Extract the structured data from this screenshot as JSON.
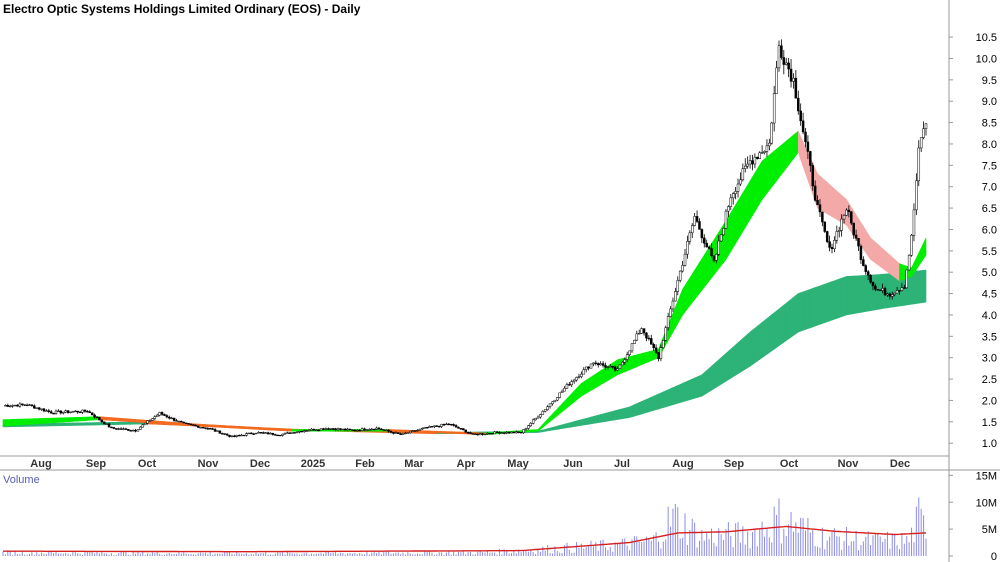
{
  "chart_data": {
    "type": "candlestick",
    "title": "Electro Optic Systems Holdings Limited Ordinary (EOS) - Daily",
    "volume_title": "Volume",
    "x_ticks": [
      "Aug",
      "Sep",
      "Oct",
      "Nov",
      "Dec",
      "2025",
      "Feb",
      "Mar",
      "Apr",
      "May",
      "Jun",
      "Jul",
      "Aug",
      "Sep",
      "Oct",
      "Nov",
      "Dec"
    ],
    "price_axis": {
      "ylim": [
        0.7,
        10.9
      ],
      "ticks": [
        "1.0",
        "1.5",
        "2.0",
        "2.5",
        "3.0",
        "3.5",
        "4.0",
        "4.5",
        "5.0",
        "5.5",
        "6.0",
        "6.5",
        "7.0",
        "7.5",
        "8.0",
        "8.5",
        "9.0",
        "9.5",
        "10.0",
        "10.5"
      ]
    },
    "volume_axis": {
      "ylim": [
        0,
        16
      ],
      "ticks": [
        {
          "value": 0,
          "label": "0"
        },
        {
          "value": 5,
          "label": "5M"
        },
        {
          "value": 10,
          "label": "10M"
        },
        {
          "value": 15,
          "label": "15M"
        }
      ]
    },
    "price_keypoints": [
      {
        "i": 0,
        "close": 1.88
      },
      {
        "i": 10,
        "close": 1.9
      },
      {
        "i": 20,
        "close": 1.72
      },
      {
        "i": 35,
        "close": 1.75
      },
      {
        "i": 45,
        "close": 1.35
      },
      {
        "i": 55,
        "close": 1.3
      },
      {
        "i": 65,
        "close": 1.7
      },
      {
        "i": 75,
        "close": 1.45
      },
      {
        "i": 85,
        "close": 1.35
      },
      {
        "i": 95,
        "close": 1.15
      },
      {
        "i": 105,
        "close": 1.25
      },
      {
        "i": 115,
        "close": 1.2
      },
      {
        "i": 125,
        "close": 1.3
      },
      {
        "i": 135,
        "close": 1.35
      },
      {
        "i": 145,
        "close": 1.3
      },
      {
        "i": 155,
        "close": 1.35
      },
      {
        "i": 165,
        "close": 1.2
      },
      {
        "i": 175,
        "close": 1.35
      },
      {
        "i": 185,
        "close": 1.45
      },
      {
        "i": 195,
        "close": 1.2
      },
      {
        "i": 205,
        "close": 1.25
      },
      {
        "i": 215,
        "close": 1.25
      },
      {
        "i": 225,
        "close": 1.8
      },
      {
        "i": 235,
        "close": 2.4
      },
      {
        "i": 245,
        "close": 2.9
      },
      {
        "i": 255,
        "close": 2.7
      },
      {
        "i": 265,
        "close": 3.7
      },
      {
        "i": 272,
        "close": 3.0
      },
      {
        "i": 280,
        "close": 4.8
      },
      {
        "i": 287,
        "close": 6.3
      },
      {
        "i": 295,
        "close": 5.2
      },
      {
        "i": 302,
        "close": 6.8
      },
      {
        "i": 310,
        "close": 7.6
      },
      {
        "i": 318,
        "close": 8.0
      },
      {
        "i": 322,
        "close": 10.3
      },
      {
        "i": 328,
        "close": 9.5
      },
      {
        "i": 333,
        "close": 8.0
      },
      {
        "i": 338,
        "close": 6.5
      },
      {
        "i": 343,
        "close": 5.5
      },
      {
        "i": 350,
        "close": 6.5
      },
      {
        "i": 357,
        "close": 5.2
      },
      {
        "i": 362,
        "close": 4.6
      },
      {
        "i": 368,
        "close": 4.5
      },
      {
        "i": 374,
        "close": 4.7
      },
      {
        "i": 377,
        "close": 5.8
      },
      {
        "i": 380,
        "close": 7.8
      },
      {
        "i": 382,
        "close": 8.4
      }
    ],
    "guppy_short": [
      {
        "i": 0,
        "lo": 1.4,
        "hi": 1.55
      },
      {
        "i": 40,
        "lo": 1.55,
        "hi": 1.62
      },
      {
        "i": 80,
        "lo": 1.4,
        "hi": 1.45
      },
      {
        "i": 120,
        "lo": 1.28,
        "hi": 1.32
      },
      {
        "i": 160,
        "lo": 1.28,
        "hi": 1.32
      },
      {
        "i": 200,
        "lo": 1.2,
        "hi": 1.24
      },
      {
        "i": 222,
        "lo": 1.28,
        "hi": 1.32
      },
      {
        "i": 240,
        "lo": 2.1,
        "hi": 2.4
      },
      {
        "i": 255,
        "lo": 2.6,
        "hi": 2.95
      },
      {
        "i": 272,
        "lo": 3.0,
        "hi": 3.2
      },
      {
        "i": 282,
        "lo": 4.0,
        "hi": 4.6
      },
      {
        "i": 300,
        "lo": 5.3,
        "hi": 6.2
      },
      {
        "i": 315,
        "lo": 6.7,
        "hi": 7.6
      },
      {
        "i": 330,
        "lo": 7.8,
        "hi": 8.3
      },
      {
        "i": 338,
        "lo": 6.5,
        "hi": 7.3
      },
      {
        "i": 350,
        "lo": 6.1,
        "hi": 6.7
      },
      {
        "i": 360,
        "lo": 5.3,
        "hi": 5.8
      },
      {
        "i": 372,
        "lo": 4.8,
        "hi": 5.2
      },
      {
        "i": 377,
        "lo": 4.9,
        "hi": 5.1
      },
      {
        "i": 383,
        "lo": 5.4,
        "hi": 5.8
      }
    ],
    "guppy_long": [
      {
        "i": 0,
        "lo": 1.38,
        "hi": 1.45
      },
      {
        "i": 60,
        "lo": 1.45,
        "hi": 1.5
      },
      {
        "i": 120,
        "lo": 1.3,
        "hi": 1.33
      },
      {
        "i": 180,
        "lo": 1.22,
        "hi": 1.25
      },
      {
        "i": 222,
        "lo": 1.25,
        "hi": 1.28
      },
      {
        "i": 260,
        "lo": 1.6,
        "hi": 1.85
      },
      {
        "i": 290,
        "lo": 2.1,
        "hi": 2.6
      },
      {
        "i": 310,
        "lo": 2.8,
        "hi": 3.6
      },
      {
        "i": 330,
        "lo": 3.6,
        "hi": 4.5
      },
      {
        "i": 350,
        "lo": 4.0,
        "hi": 4.9
      },
      {
        "i": 365,
        "lo": 4.15,
        "hi": 4.95
      },
      {
        "i": 383,
        "lo": 4.3,
        "hi": 5.05
      }
    ],
    "volume_keypoints": [
      {
        "i": 0,
        "v": 0.8
      },
      {
        "i": 100,
        "v": 0.6
      },
      {
        "i": 200,
        "v": 0.8
      },
      {
        "i": 222,
        "v": 1.5
      },
      {
        "i": 255,
        "v": 2.5
      },
      {
        "i": 270,
        "v": 3.5
      },
      {
        "i": 278,
        "v": 9.0
      },
      {
        "i": 290,
        "v": 4.5
      },
      {
        "i": 310,
        "v": 5.0
      },
      {
        "i": 322,
        "v": 8.5
      },
      {
        "i": 340,
        "v": 4.5
      },
      {
        "i": 360,
        "v": 3.5
      },
      {
        "i": 376,
        "v": 3.5
      },
      {
        "i": 380,
        "v": 8.5
      },
      {
        "i": 383,
        "v": 6.0
      }
    ],
    "volume_ma_keypoints": [
      {
        "i": 0,
        "v": 0.9
      },
      {
        "i": 100,
        "v": 0.8
      },
      {
        "i": 215,
        "v": 1.0
      },
      {
        "i": 260,
        "v": 2.5
      },
      {
        "i": 280,
        "v": 4.3
      },
      {
        "i": 300,
        "v": 4.5
      },
      {
        "i": 325,
        "v": 5.5
      },
      {
        "i": 345,
        "v": 4.6
      },
      {
        "i": 370,
        "v": 4.0
      },
      {
        "i": 383,
        "v": 4.3
      }
    ],
    "colors": {
      "candle_up": "#ffffff",
      "candle_down": "#000000",
      "candle_outline": "#000000",
      "short_up": "#00ee00",
      "short_down": "#f26b21",
      "short_fade": "#f4a9a9",
      "long_up": "#2db377",
      "long_down": "#f26b21",
      "volume_bar": "#8c8ce6",
      "volume_ma": "#d62020",
      "axis_text": "#000000"
    }
  }
}
